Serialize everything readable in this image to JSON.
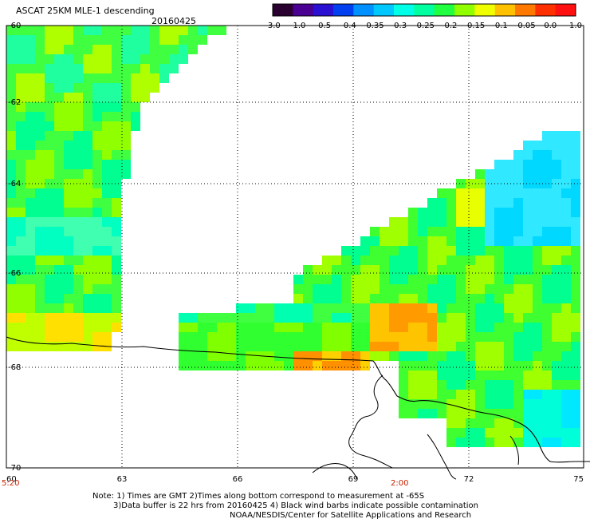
{
  "header": {
    "title": "ASCAT 25KM MLE-1 descending",
    "date": "20160425"
  },
  "colorbar": {
    "tick_labels": [
      "-3.0",
      "-1.0",
      "-0.5",
      "-0.4",
      "-0.35",
      "-0.3",
      "-0.25",
      "-0.2",
      "-0.15",
      "-0.1",
      "-0.05",
      "0.0",
      "1.0"
    ],
    "colors": [
      "#2a0030",
      "#4a0090",
      "#2a10d0",
      "#0040f0",
      "#0090ff",
      "#00c8ff",
      "#00ffe6",
      "#00ffa0",
      "#20ff40",
      "#90ff00",
      "#f0ff00",
      "#ffc000",
      "#ff7800",
      "#ff3000",
      "#ff1010"
    ]
  },
  "map": {
    "lat_labels": [
      "-60",
      "-62",
      "-64",
      "-66",
      "-68",
      "-70"
    ],
    "lon_labels": [
      "60",
      "63",
      "66",
      "69",
      "72",
      "75"
    ],
    "time_labels": [
      "5:20",
      "2:00"
    ],
    "time_color": "#c82000"
  },
  "notes": {
    "line1": "Note: 1) Times are GMT 2)Times along bottom correspond to measurement at -65S",
    "line2": "3)Data buffer is 22 hrs from 20160425 4) Black wind barbs indicate possible contamination",
    "line3": "NOAA/NESDIS/Center for Satellite Applications and Research"
  }
}
